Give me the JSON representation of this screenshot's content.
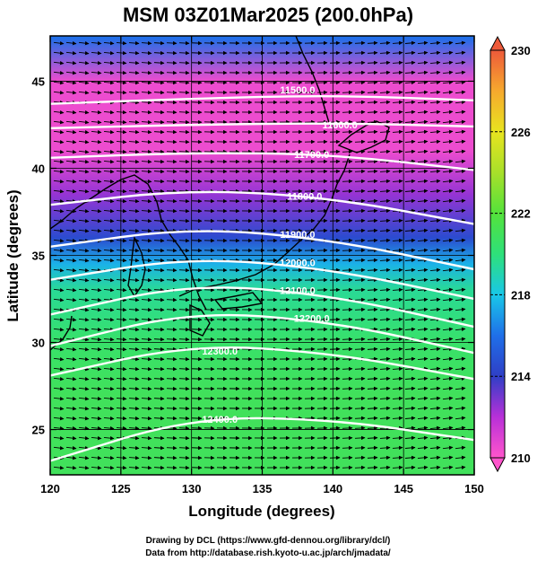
{
  "chart_data": {
    "type": "heatmap",
    "title": "MSM 03Z01Mar2025 (200.0hPa)",
    "xlabel": "Longitude (degrees)",
    "ylabel": "Latitude  (degrees)",
    "xlim": [
      120,
      150
    ],
    "ylim": [
      22.4,
      47.6
    ],
    "xticks": [
      120,
      125,
      130,
      135,
      140,
      145,
      150
    ],
    "yticks": [
      25,
      30,
      35,
      40,
      45
    ],
    "grid": true,
    "colorbar": {
      "min": 210,
      "max": 230,
      "ticks": [
        210,
        214,
        218,
        222,
        226,
        230
      ],
      "colors": [
        "#ff55cc",
        "#b830d8",
        "#2f3fc6",
        "#1f6fe8",
        "#19c8e8",
        "#2ee07a",
        "#54e23b",
        "#a8e02a",
        "#e8e41f",
        "#f6a92e",
        "#ee5a3a"
      ]
    },
    "temperature_field": [
      {
        "lat": 47.5,
        "value": 216
      },
      {
        "lat": 45.0,
        "value": 210.5
      },
      {
        "lat": 41.0,
        "value": 210.5
      },
      {
        "lat": 38.5,
        "value": 212.5
      },
      {
        "lat": 36.0,
        "value": 214.5
      },
      {
        "lat": 34.5,
        "value": 217.5
      },
      {
        "lat": 33.0,
        "value": 219.5
      },
      {
        "lat": 30.0,
        "value": 220.5
      },
      {
        "lat": 27.0,
        "value": 221
      },
      {
        "lat": 22.4,
        "value": 221
      }
    ],
    "contours": [
      {
        "value": "11500.0",
        "label_at": [
          137.5,
          44.5
        ],
        "points": [
          [
            120,
            43.7
          ],
          [
            130,
            44.0
          ],
          [
            140,
            44.2
          ],
          [
            150,
            43.9
          ]
        ]
      },
      {
        "value": "11600.0",
        "label_at": [
          140.5,
          42.5
        ],
        "points": [
          [
            120,
            42.3
          ],
          [
            130,
            42.5
          ],
          [
            140,
            42.6
          ],
          [
            150,
            42.4
          ]
        ]
      },
      {
        "value": "11700.0",
        "label_at": [
          138.5,
          40.8
        ],
        "points": [
          [
            120,
            40.6
          ],
          [
            130,
            40.9
          ],
          [
            140,
            40.8
          ],
          [
            150,
            39.9
          ]
        ]
      },
      {
        "value": "11800.0",
        "label_at": [
          138.0,
          38.4
        ],
        "points": [
          [
            120,
            37.9
          ],
          [
            130,
            38.8
          ],
          [
            140,
            38.3
          ],
          [
            150,
            36.8
          ]
        ]
      },
      {
        "value": "11900.0",
        "label_at": [
          137.5,
          36.2
        ],
        "points": [
          [
            120,
            35.5
          ],
          [
            130,
            36.6
          ],
          [
            140,
            35.9
          ],
          [
            150,
            34.2
          ]
        ]
      },
      {
        "value": "12000.0",
        "label_at": [
          137.5,
          34.6
        ],
        "points": [
          [
            120,
            33.6
          ],
          [
            130,
            34.9
          ],
          [
            140,
            34.2
          ],
          [
            150,
            32.5
          ]
        ]
      },
      {
        "value": "12100.0",
        "label_at": [
          137.5,
          33.0
        ],
        "points": [
          [
            120,
            31.6
          ],
          [
            130,
            33.4
          ],
          [
            140,
            32.7
          ],
          [
            150,
            30.9
          ]
        ]
      },
      {
        "value": "12200.0",
        "label_at": [
          138.5,
          31.4
        ],
        "points": [
          [
            120,
            29.8
          ],
          [
            130,
            31.8
          ],
          [
            140,
            31.2
          ],
          [
            150,
            29.4
          ]
        ]
      },
      {
        "value": "12300.0",
        "label_at": [
          132.0,
          29.5
        ],
        "points": [
          [
            120,
            28.1
          ],
          [
            130,
            29.9
          ],
          [
            140,
            29.4
          ],
          [
            150,
            27.9
          ]
        ]
      },
      {
        "value": "12400.0",
        "label_at": [
          132.0,
          25.6
        ],
        "points": [
          [
            120,
            23.2
          ],
          [
            130,
            25.7
          ],
          [
            140,
            25.6
          ],
          [
            150,
            24.4
          ]
        ]
      }
    ]
  },
  "footer": {
    "line1": "Drawing by DCL (https://www.gfd-dennou.org/library/dcl/)",
    "line2": "Data from http://database.rish.kyoto-u.ac.jp/arch/jmadata/"
  }
}
